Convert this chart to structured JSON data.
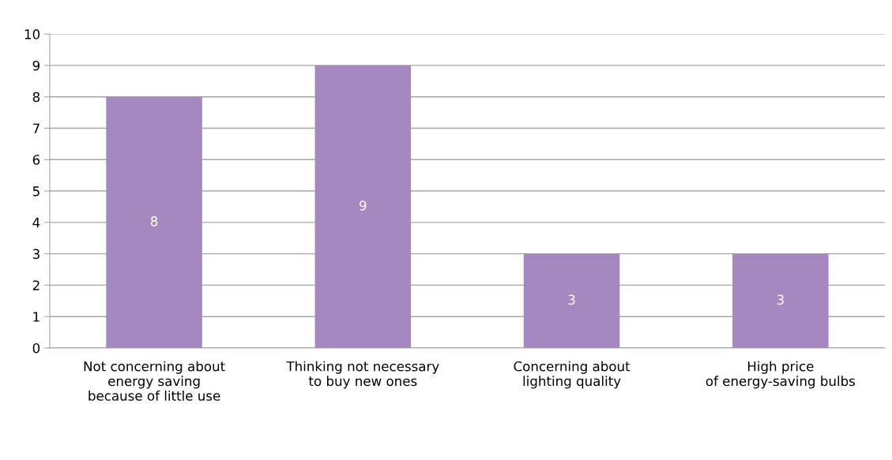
{
  "chart_data": {
    "type": "bar",
    "categories": [
      "Not concerning about\nenergy saving\nbecause of little use",
      "Thinking not necessary\nto buy new ones",
      "Concerning about\nlighting quality",
      "High price\nof energy-saving bulbs"
    ],
    "values": [
      8,
      9,
      3,
      3
    ],
    "color": "#a688c0",
    "ylim": [
      0,
      10
    ],
    "yticks": [
      0,
      1,
      2,
      3,
      4,
      5,
      6,
      7,
      8,
      9,
      10
    ],
    "grid": "y",
    "data_labels": true
  }
}
